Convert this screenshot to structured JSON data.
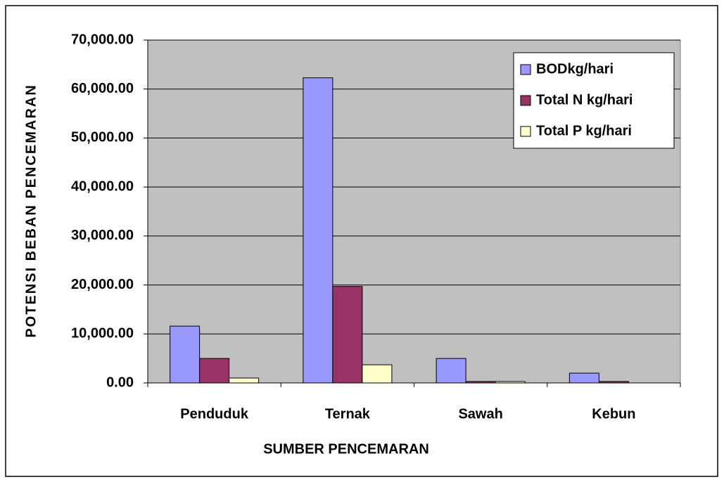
{
  "chart_data": {
    "type": "bar",
    "x_label": "SUMBER PENCEMARAN",
    "y_label": "POTENSI BEBAN PENCEMARAN",
    "categories": [
      "Penduduk",
      "Ternak",
      "Sawah",
      "Kebun"
    ],
    "series": [
      {
        "name": "BODkg/hari",
        "color": "#9999ff",
        "values": [
          11600,
          62300,
          5000,
          2000
        ]
      },
      {
        "name": "Total N kg/hari",
        "color": "#993366",
        "values": [
          5000,
          19700,
          300,
          300
        ]
      },
      {
        "name": "Total P kg/hari",
        "color": "#ffffcc",
        "values": [
          1000,
          3700,
          300,
          0
        ]
      }
    ],
    "ylim": [
      0,
      70000
    ],
    "yticks": [
      {
        "value": 0,
        "label": "0.00"
      },
      {
        "value": 10000,
        "label": "10,000.00"
      },
      {
        "value": 20000,
        "label": "20,000.00"
      },
      {
        "value": 30000,
        "label": "30,000.00"
      },
      {
        "value": 40000,
        "label": "40,000.00"
      },
      {
        "value": 50000,
        "label": "50,000.00"
      },
      {
        "value": 60000,
        "label": "60,000.00"
      },
      {
        "value": 70000,
        "label": "70,000.00"
      }
    ],
    "grid": true,
    "legend": "upper right"
  }
}
